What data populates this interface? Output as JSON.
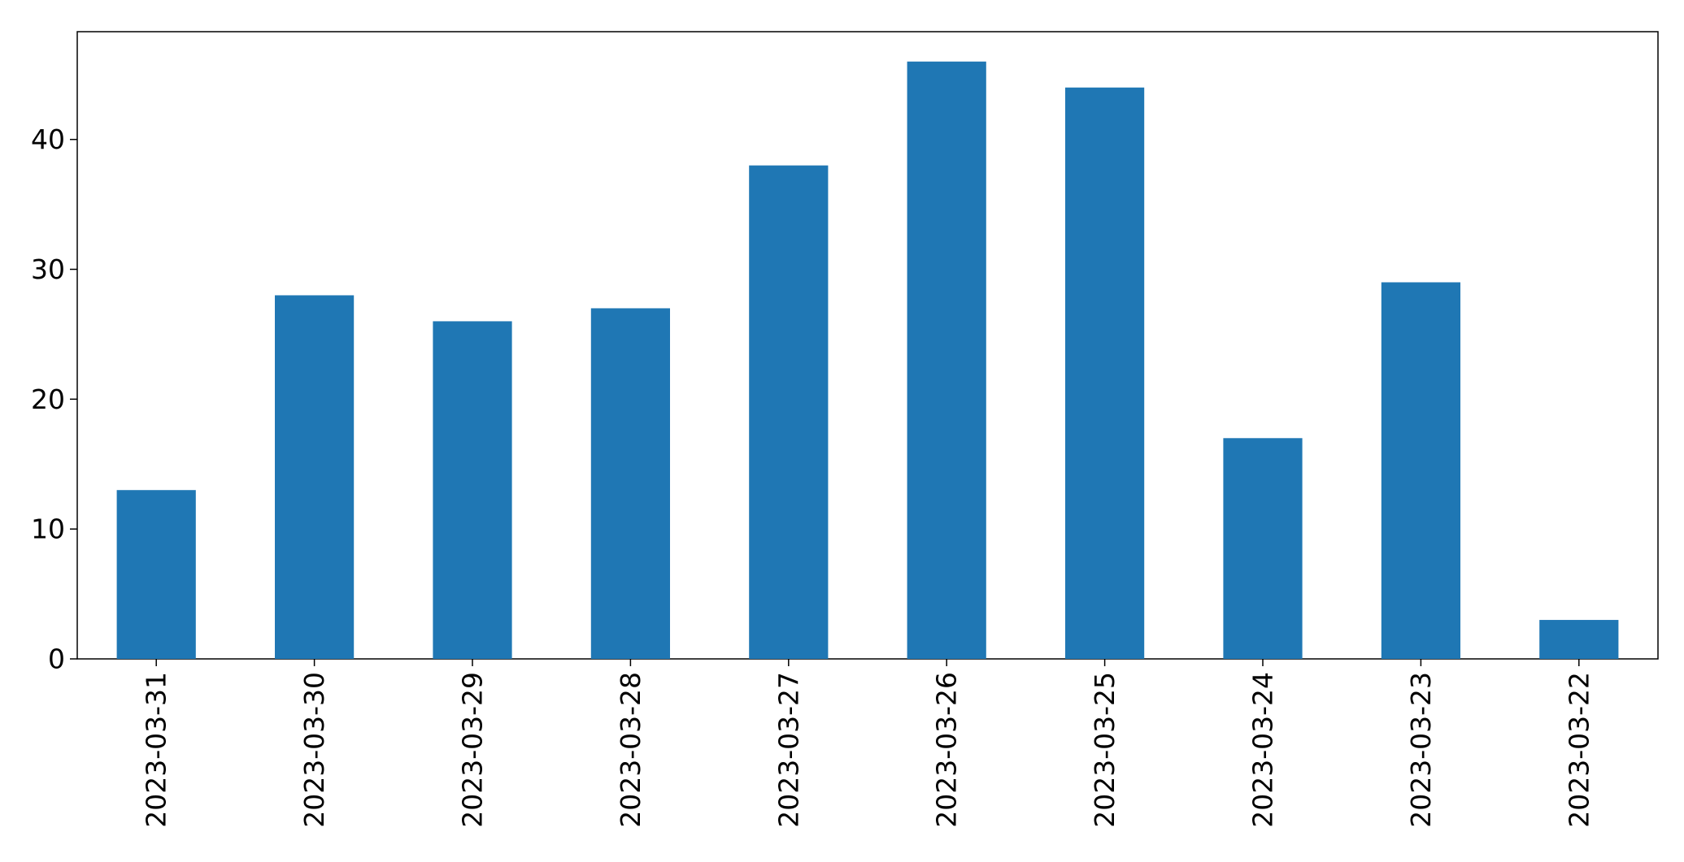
{
  "chart_data": {
    "type": "bar",
    "title": "",
    "xlabel": "",
    "ylabel": "",
    "categories": [
      "2023-03-31",
      "2023-03-30",
      "2023-03-29",
      "2023-03-28",
      "2023-03-27",
      "2023-03-26",
      "2023-03-25",
      "2023-03-24",
      "2023-03-23",
      "2023-03-22"
    ],
    "values": [
      13,
      28,
      26,
      27,
      38,
      46,
      44,
      17,
      29,
      3
    ],
    "ylim": [
      0,
      48.3
    ],
    "yticks": [
      0,
      10,
      20,
      30,
      40
    ],
    "grid": false,
    "legend": "none",
    "bar_color": "#1f77b4"
  }
}
